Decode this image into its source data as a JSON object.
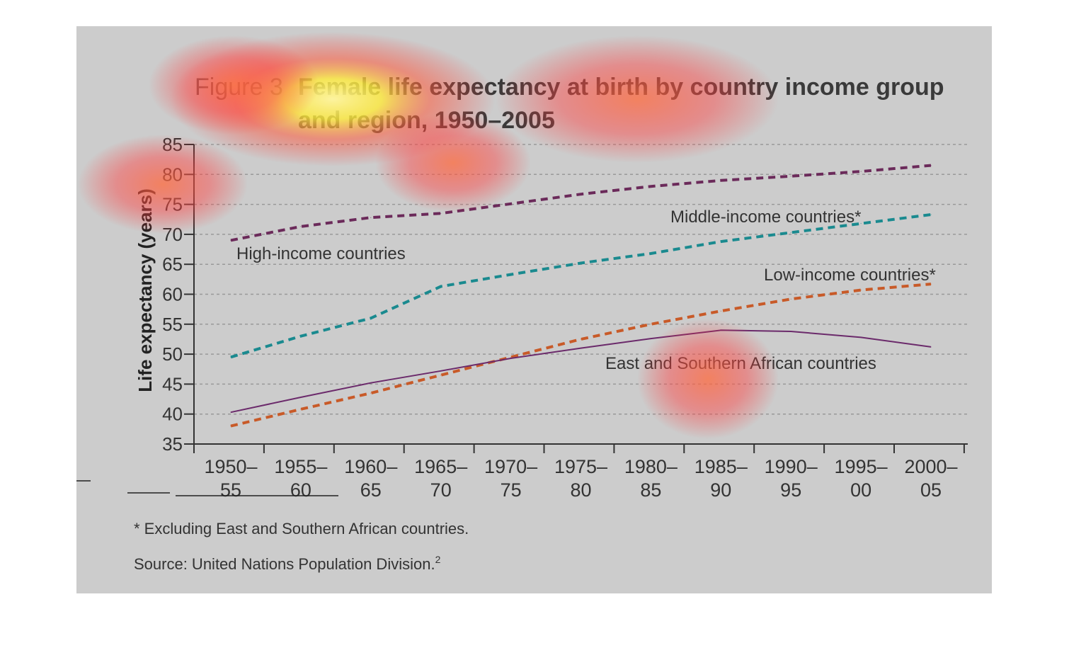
{
  "figure": {
    "label": "Figure 3",
    "title_line1": "Female life expectancy at birth by country income group",
    "title_line2": "and region, 1950–2005"
  },
  "footnote": "* Excluding East and Southern African countries.",
  "source": "Source: United Nations Population Division.",
  "source_sup": "2",
  "colors": {
    "panel_background": "#cccccc",
    "high_income": "#6b2a5a",
    "middle_income": "#1a8a8f",
    "low_income": "#c85a28",
    "east_southern_africa": "#6b2a6b",
    "grid": "#999999"
  },
  "chart_data": {
    "type": "line",
    "ylabel": "Life expectancy (years)",
    "xlabel": "",
    "ylim": [
      35,
      85
    ],
    "yticks": [
      35,
      40,
      45,
      50,
      55,
      60,
      65,
      70,
      75,
      80,
      85
    ],
    "grid": "horizontal dashed",
    "categories": [
      [
        "1950–",
        "55"
      ],
      [
        "1955–",
        "60"
      ],
      [
        "1960–",
        "65"
      ],
      [
        "1965–",
        "70"
      ],
      [
        "1970–",
        "75"
      ],
      [
        "1975–",
        "80"
      ],
      [
        "1980–",
        "85"
      ],
      [
        "1985–",
        "90"
      ],
      [
        "1990–",
        "95"
      ],
      [
        "1995–",
        "00"
      ],
      [
        "2000–",
        "05"
      ]
    ],
    "series": [
      {
        "key": "high",
        "name": "High-income countries",
        "style": "dashed",
        "color": "#6b2a5a",
        "values": [
          69,
          71.3,
          72.8,
          73.5,
          75.1,
          76.7,
          78,
          79,
          79.7,
          80.5,
          81.5
        ]
      },
      {
        "key": "middle",
        "name": "Middle-income countries*",
        "style": "dashed",
        "color": "#1a8a8f",
        "values": [
          49.5,
          53,
          56,
          61.3,
          63.3,
          65.2,
          66.8,
          68.8,
          70.3,
          71.8,
          73.3
        ]
      },
      {
        "key": "low",
        "name": "Low-income countries*",
        "style": "dashed",
        "color": "#c85a28",
        "values": [
          38,
          40.8,
          43.5,
          46.5,
          49.5,
          52.5,
          55,
          57.2,
          59.2,
          60.7,
          61.7
        ]
      },
      {
        "key": "esa",
        "name": "East and Southern African countries",
        "style": "solid",
        "color": "#6b2a6b",
        "values": [
          40.3,
          42.8,
          45.2,
          47.2,
          49.3,
          51,
          52.6,
          54,
          53.8,
          52.8,
          51.2
        ]
      }
    ]
  }
}
